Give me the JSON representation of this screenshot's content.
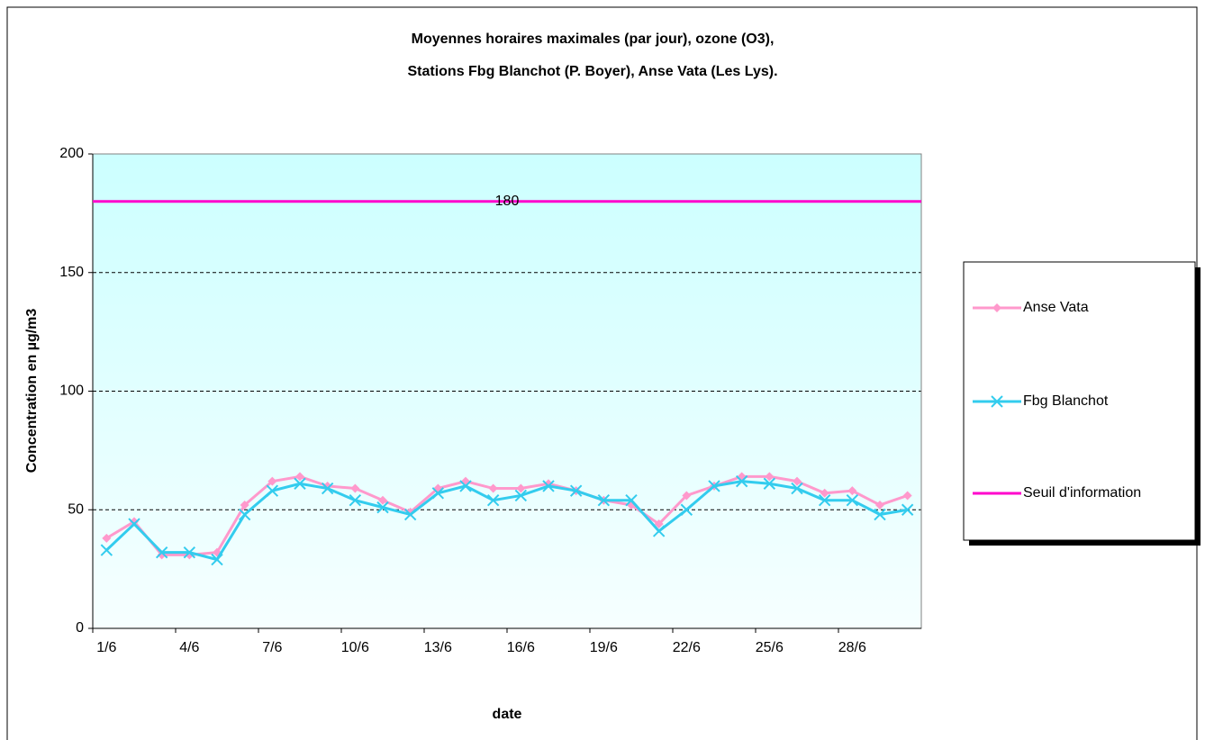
{
  "chart_data": {
    "type": "line",
    "title_lines": [
      "Moyennes horaires maximales (par jour), ozone (O3),",
      "Stations Fbg Blanchot (P. Boyer), Anse Vata (Les Lys)."
    ],
    "x_label": "date",
    "y_label": "Concentration en µg/m3",
    "categories": [
      "1/6",
      null,
      null,
      "4/6",
      null,
      null,
      "7/6",
      null,
      null,
      "10/6",
      null,
      null,
      "13/6",
      null,
      null,
      "16/6",
      null,
      null,
      "19/6",
      null,
      null,
      "22/6",
      null,
      null,
      "25/6",
      null,
      null,
      "28/6",
      null,
      null
    ],
    "series": [
      {
        "name": "Anse Vata",
        "color": "#ff99cc",
        "marker": "diamond",
        "values": [
          38,
          45,
          31,
          31,
          32,
          52,
          62,
          64,
          60,
          59,
          54,
          49,
          59,
          62,
          59,
          59,
          61,
          58,
          54,
          52,
          44,
          56,
          60,
          64,
          64,
          62,
          57,
          58,
          52,
          56
        ]
      },
      {
        "name": "Fbg Blanchot",
        "color": "#33ccee",
        "marker": "x",
        "values": [
          33,
          44,
          32,
          32,
          29,
          48,
          58,
          61,
          59,
          54,
          51,
          48,
          57,
          60,
          54,
          56,
          60,
          58,
          54,
          54,
          41,
          50,
          60,
          62,
          61,
          59,
          54,
          54,
          48,
          50
        ]
      }
    ],
    "threshold": {
      "name": "Seuil d'information",
      "color": "#ff00cc",
      "value": 180
    },
    "ylim": [
      0,
      200
    ],
    "yticks": [
      0,
      50,
      100,
      150,
      200
    ],
    "grid": true
  }
}
